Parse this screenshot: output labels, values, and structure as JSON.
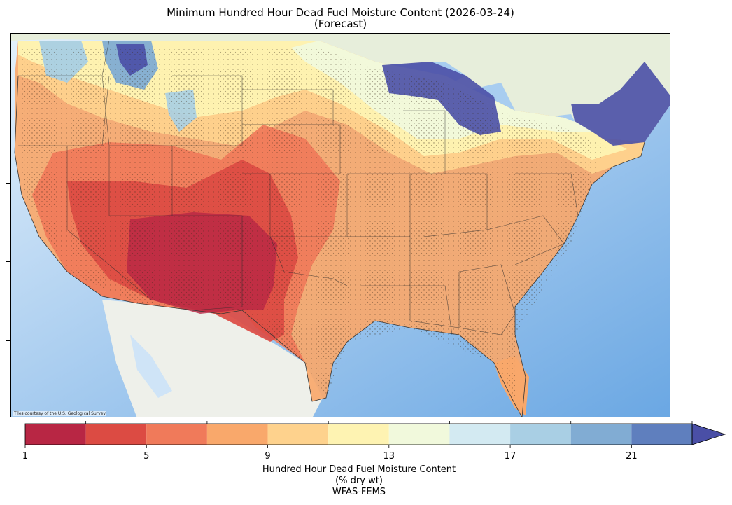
{
  "title": {
    "line1": "Minimum Hundred Hour Dead Fuel Moisture Content (2026-03-24)",
    "line2": "(Forecast)"
  },
  "map": {
    "attribution": "Tiles courtesy of the U.S. Geological Survey",
    "basemap_colors": {
      "ocean": "#cfe4f7",
      "land": "#eef0ea",
      "lakes": "#a8cdf0"
    }
  },
  "colorbar": {
    "ticks": [
      "1",
      "5",
      "9",
      "13",
      "17",
      "21"
    ],
    "bins": [
      {
        "range": [
          1,
          3
        ],
        "color": "#b82644"
      },
      {
        "range": [
          3,
          5
        ],
        "color": "#dc4b43"
      },
      {
        "range": [
          5,
          7
        ],
        "color": "#f07a5a"
      },
      {
        "range": [
          7,
          9
        ],
        "color": "#f9a86b"
      },
      {
        "range": [
          9,
          11
        ],
        "color": "#fed28d"
      },
      {
        "range": [
          11,
          13
        ],
        "color": "#fef3b2"
      },
      {
        "range": [
          13,
          15
        ],
        "color": "#f1f9dc"
      },
      {
        "range": [
          15,
          17
        ],
        "color": "#d3eaf2"
      },
      {
        "range": [
          17,
          19
        ],
        "color": "#a9cfe4"
      },
      {
        "range": [
          19,
          21
        ],
        "color": "#81acd3"
      },
      {
        "range": [
          21,
          23
        ],
        "color": "#5f7fbe"
      }
    ],
    "extend_color": "#4a4fa6",
    "caption_line1": "Hundred Hour Dead Fuel Moisture Content",
    "caption_line2": "(% dry wt)",
    "caption_line3": "WFAS-FEMS"
  }
}
